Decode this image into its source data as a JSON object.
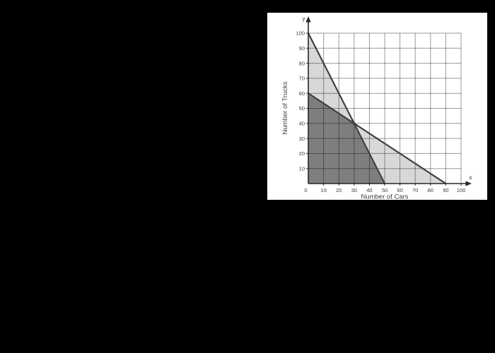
{
  "canvas": {
    "background_color": "#000000",
    "panel_color": "#ffffff"
  },
  "chart_data": {
    "type": "area",
    "description": "Linear programming feasible region graph with two constraint boundary lines",
    "xlabel": "Number of Cars",
    "ylabel": "Number of Trucks",
    "x_axis_letter": "x",
    "y_axis_letter": "y",
    "xlim": [
      0,
      100
    ],
    "ylim": [
      0,
      100
    ],
    "x_ticks": [
      0,
      10,
      20,
      30,
      40,
      50,
      60,
      70,
      80,
      90,
      100
    ],
    "y_ticks": [
      10,
      20,
      30,
      40,
      50,
      60,
      70,
      80,
      90,
      100
    ],
    "grid": true,
    "legend": "none",
    "lines": [
      {
        "name": "steep-boundary",
        "points": [
          [
            0,
            100
          ],
          [
            50,
            0
          ]
        ]
      },
      {
        "name": "shallow-boundary",
        "points": [
          [
            0,
            60
          ],
          [
            90,
            0
          ]
        ]
      }
    ],
    "intersection_point": [
      30,
      40
    ],
    "regions": [
      {
        "name": "overlap-dark",
        "fill": "#7e7e7e",
        "vertices": [
          [
            0,
            0
          ],
          [
            0,
            60
          ],
          [
            30,
            40
          ],
          [
            50,
            0
          ]
        ]
      },
      {
        "name": "light-upper-left",
        "fill": "#d8d8d8",
        "vertices": [
          [
            0,
            60
          ],
          [
            0,
            100
          ],
          [
            30,
            40
          ]
        ]
      },
      {
        "name": "light-lower-right",
        "fill": "#d8d8d8",
        "vertices": [
          [
            30,
            40
          ],
          [
            50,
            0
          ],
          [
            90,
            0
          ]
        ]
      }
    ],
    "colors": {
      "grid": "rgba(0,0,0,0.40)",
      "axis": "#262626",
      "line": "#404040",
      "text": "#3c3c3c",
      "dark_region": "#7e7e7e",
      "light_region": "#d8d8d8"
    }
  }
}
